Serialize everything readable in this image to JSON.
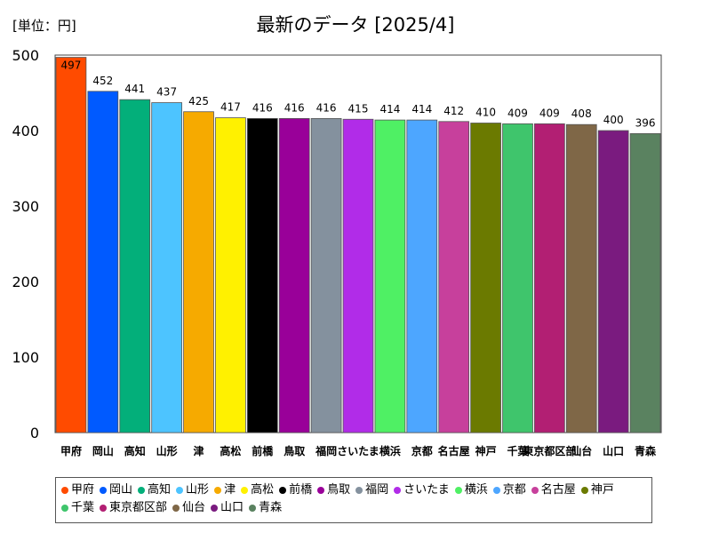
{
  "unit_label": "[単位：円]",
  "chart_data": {
    "type": "bar",
    "title": "最新のデータ [2025/4]",
    "ylim": [
      0,
      500
    ],
    "yticks": [
      0,
      100,
      200,
      300,
      400,
      500
    ],
    "grid": false,
    "legend_position": "bottom",
    "categories": [
      "甲府",
      "岡山",
      "高知",
      "山形",
      "津",
      "高松",
      "前橋",
      "鳥取",
      "福岡",
      "さいたま",
      "横浜",
      "京都",
      "名古屋",
      "神戸",
      "千葉",
      "東京都区部",
      "仙台",
      "山口",
      "青森"
    ],
    "values": [
      497,
      452,
      441,
      437,
      425,
      417,
      416,
      416,
      416,
      415,
      414,
      414,
      412,
      410,
      409,
      409,
      408,
      400,
      396
    ],
    "colors": [
      "#ff4b00",
      "#005aff",
      "#03af7a",
      "#4dc4ff",
      "#f6aa00",
      "#fff100",
      "#000000",
      "#990099",
      "#84919e",
      "#b12ce8",
      "#4ff064",
      "#4da6ff",
      "#c7409c",
      "#6b7a00",
      "#3fc56c",
      "#b21f73",
      "#7f6747",
      "#7a1b7f",
      "#5a8260"
    ]
  }
}
